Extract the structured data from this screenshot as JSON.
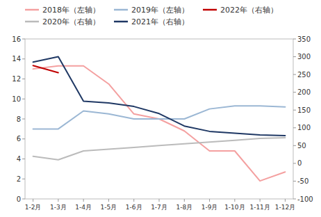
{
  "chart_data": {
    "type": "line",
    "categories": [
      "1-2月",
      "1-3月",
      "1-4月",
      "1-5月",
      "1-6月",
      "1-7月",
      "1-8月",
      "1-9月",
      "1-10月",
      "1-11月",
      "1-12月"
    ],
    "series": [
      {
        "name": "2018年（左轴）",
        "color": "#F4A0A0",
        "values": [
          13.0,
          13.3,
          13.3,
          11.5,
          8.5,
          8.0,
          6.8,
          4.8,
          4.8,
          1.8,
          2.7
        ]
      },
      {
        "name": "2019年（左轴）",
        "color": "#9BB7D4",
        "values": [
          7.0,
          7.0,
          8.8,
          8.5,
          8.0,
          8.0,
          8.0,
          9.0,
          9.3,
          9.3,
          9.2
        ]
      },
      {
        "name": "2022年（右轴）",
        "color": "#C00000",
        "axis": "y2",
        "values": [
          275,
          255,
          null,
          null,
          null,
          null,
          null,
          null,
          null,
          null,
          null
        ]
      },
      {
        "name": "2020年（右轴）",
        "color": "#BBBBBB",
        "axis": "y2",
        "values": [
          20,
          10,
          35,
          40,
          45,
          50,
          55,
          60,
          65,
          70,
          72
        ]
      },
      {
        "name": "2021年（右轴）",
        "color": "#1F3864",
        "axis": "y2",
        "values": [
          285,
          300,
          175,
          170,
          160,
          140,
          105,
          90,
          85,
          80,
          78
        ]
      }
    ],
    "ylim": [
      0,
      16
    ],
    "yticks": [
      0,
      2,
      4,
      6,
      8,
      10,
      12,
      14,
      16
    ],
    "y2lim": [
      -100,
      350
    ],
    "y2ticks": [
      -100,
      -50,
      0,
      50,
      100,
      150,
      200,
      250,
      300,
      350
    ],
    "grid": false
  }
}
